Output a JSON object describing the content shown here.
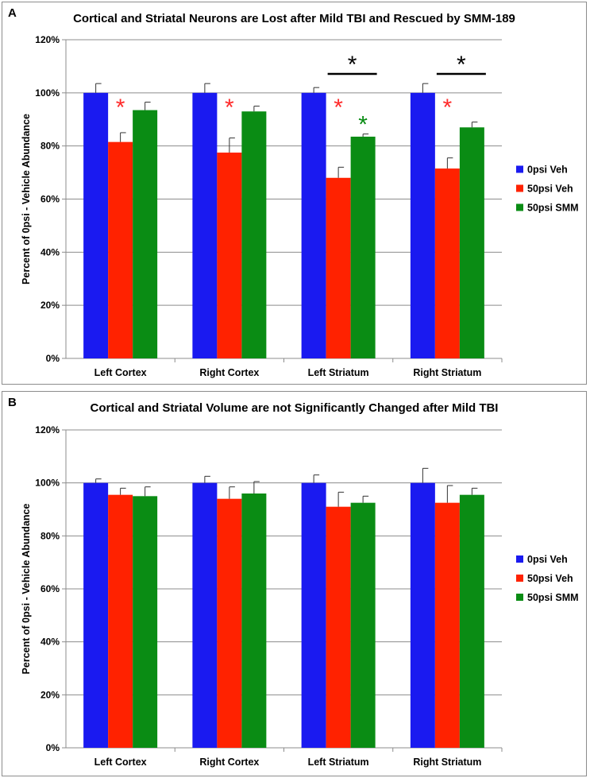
{
  "colors": {
    "series": [
      "#1a1af0",
      "#ff2200",
      "#0a8c14"
    ],
    "sigRed": "#ff2a2a",
    "sigGreen": "#0a8c14",
    "sigBlack": "#000000",
    "grid": "#8c8c8c"
  },
  "chart_data": [
    {
      "panel": "A",
      "type": "bar",
      "title": "Cortical and Striatal Neurons are Lost after Mild TBI and Rescued by SMM-189",
      "xlabel": "",
      "ylabel": "Percent of 0psi - Vehicle Abundance",
      "ylim": [
        0,
        120
      ],
      "yticks": [
        0,
        20,
        40,
        60,
        80,
        100,
        120
      ],
      "ytick_labels": [
        "0%",
        "20%",
        "40%",
        "60%",
        "80%",
        "100%",
        "120%"
      ],
      "grid": true,
      "legend": "right",
      "categories": [
        "Left Cortex",
        "Right Cortex",
        "Left Striatum",
        "Right Striatum"
      ],
      "series": [
        {
          "name": "0psi Veh",
          "values": [
            100,
            100,
            100,
            100
          ],
          "errors": [
            3.5,
            3.5,
            2.0,
            3.5
          ]
        },
        {
          "name": "50psi Veh",
          "values": [
            81.5,
            77.5,
            68.0,
            71.5
          ],
          "errors": [
            3.5,
            5.5,
            4.0,
            4.0
          ]
        },
        {
          "name": "50psi SMM",
          "values": [
            93.5,
            93.0,
            83.5,
            87.0
          ],
          "errors": [
            3.0,
            2.0,
            1.0,
            2.0
          ]
        }
      ],
      "annotations": [
        {
          "text": "*",
          "category": 0,
          "series": 1,
          "color": "red"
        },
        {
          "text": "*",
          "category": 1,
          "series": 1,
          "color": "red"
        },
        {
          "text": "*",
          "category": 2,
          "series": 1,
          "color": "red"
        },
        {
          "text": "*",
          "category": 2,
          "series": 2,
          "color": "green"
        },
        {
          "text": "*",
          "category": 3,
          "series": 1,
          "color": "red"
        },
        {
          "text": "*",
          "category": 2,
          "between": [
            1,
            2
          ],
          "color": "black",
          "bracket": true
        },
        {
          "text": "*",
          "category": 3,
          "between": [
            1,
            2
          ],
          "color": "black",
          "bracket": true
        }
      ]
    },
    {
      "panel": "B",
      "type": "bar",
      "title": "Cortical and Striatal Volume are not Significantly Changed after Mild TBI",
      "xlabel": "",
      "ylabel": "Percent of 0psi - Vehicle Abundance",
      "ylim": [
        0,
        120
      ],
      "yticks": [
        0,
        20,
        40,
        60,
        80,
        100,
        120
      ],
      "ytick_labels": [
        "0%",
        "20%",
        "40%",
        "60%",
        "80%",
        "100%",
        "120%"
      ],
      "grid": true,
      "legend": "right",
      "categories": [
        "Left Cortex",
        "Right Cortex",
        "Left Striatum",
        "Right Striatum"
      ],
      "series": [
        {
          "name": "0psi Veh",
          "values": [
            100,
            100,
            100,
            100
          ],
          "errors": [
            1.5,
            2.5,
            3.0,
            5.5
          ]
        },
        {
          "name": "50psi Veh",
          "values": [
            95.5,
            94.0,
            91.0,
            92.5
          ],
          "errors": [
            2.5,
            4.5,
            5.5,
            6.5
          ]
        },
        {
          "name": "50psi SMM",
          "values": [
            95.0,
            96.0,
            92.5,
            95.5
          ],
          "errors": [
            3.5,
            4.5,
            2.5,
            2.5
          ]
        }
      ],
      "annotations": []
    }
  ]
}
